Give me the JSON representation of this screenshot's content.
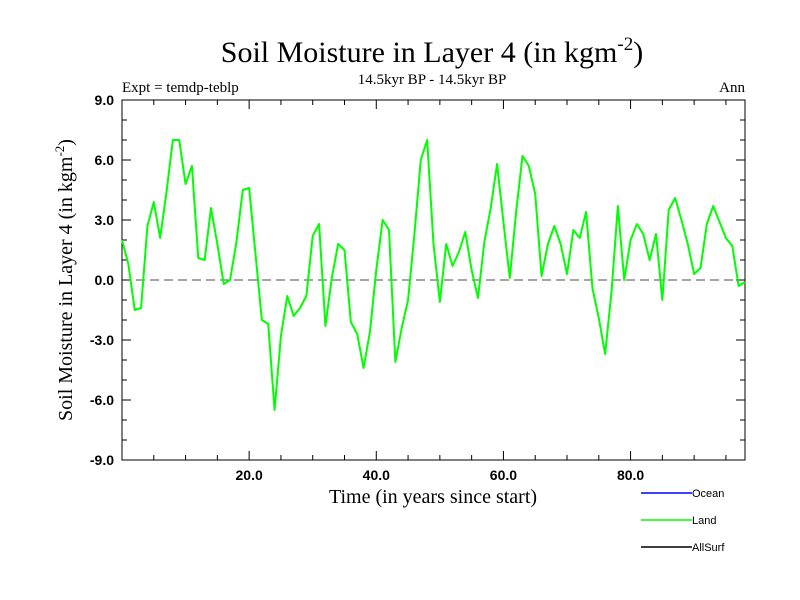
{
  "chart_data": {
    "type": "line",
    "title": "Soil Moisture in Layer 4 (in kgm",
    "title_sup": "-2",
    "title_close": ")",
    "subtitle_left": "Expt = temdp-teblp",
    "subtitle_center": "14.5kyr BP - 14.5kyr BP",
    "subtitle_right": "Ann",
    "xlabel": "Time (in years since start)",
    "ylabel": "Soil Moisture in Layer 4 (in kgm",
    "ylabel_sup": "-2",
    "ylabel_close": ")",
    "xlim": [
      0,
      98
    ],
    "ylim": [
      -9,
      9
    ],
    "x_ticks": [
      20,
      40,
      60,
      80
    ],
    "x_tick_labels": [
      "20.0",
      "40.0",
      "60.0",
      "80.0"
    ],
    "y_ticks": [
      -9,
      -6,
      -3,
      0,
      3,
      6,
      9
    ],
    "y_tick_labels": [
      "-9.0",
      "-6.0",
      "-3.0",
      "0.0",
      "3.0",
      "6.0",
      "9.0"
    ],
    "reference_line": 0,
    "series": [
      {
        "name": "Land",
        "color": "#00ff00",
        "x": [
          0,
          1,
          2,
          3,
          4,
          5,
          6,
          7,
          8,
          9,
          10,
          11,
          12,
          13,
          14,
          15,
          16,
          17,
          18,
          19,
          20,
          21,
          22,
          23,
          24,
          25,
          26,
          27,
          28,
          29,
          30,
          31,
          32,
          33,
          34,
          35,
          36,
          37,
          38,
          39,
          40,
          41,
          42,
          43,
          44,
          45,
          46,
          47,
          48,
          49,
          50,
          51,
          52,
          53,
          54,
          55,
          56,
          57,
          58,
          59,
          60,
          61,
          62,
          63,
          64,
          65,
          66,
          67,
          68,
          69,
          70,
          71,
          72,
          73,
          74,
          75,
          76,
          77,
          78,
          79,
          80,
          81,
          82,
          83,
          84,
          85,
          86,
          87,
          88,
          89,
          90,
          91,
          92,
          93,
          94,
          95,
          96,
          97,
          98
        ],
        "values": [
          2.0,
          0.8,
          -1.5,
          -1.4,
          2.7,
          3.9,
          2.1,
          4.4,
          7.0,
          7.0,
          4.8,
          5.7,
          1.1,
          1.0,
          3.6,
          1.8,
          -0.2,
          0.0,
          1.9,
          4.5,
          4.6,
          1.3,
          -2.0,
          -2.2,
          -6.5,
          -2.8,
          -0.8,
          -1.8,
          -1.4,
          -0.8,
          2.2,
          2.8,
          -2.3,
          0.1,
          1.8,
          1.5,
          -2.1,
          -2.7,
          -4.4,
          -2.6,
          0.5,
          3.0,
          2.5,
          -4.1,
          -2.4,
          -1.0,
          2.3,
          6.0,
          7.0,
          1.8,
          -1.1,
          1.8,
          0.7,
          1.4,
          2.4,
          0.5,
          -0.9,
          1.9,
          3.6,
          5.8,
          2.9,
          0.1,
          3.4,
          6.2,
          5.7,
          4.3,
          0.2,
          1.8,
          2.7,
          1.8,
          0.3,
          2.5,
          2.1,
          3.4,
          -0.4,
          -1.9,
          -3.7,
          -0.6,
          3.7,
          0.0,
          2.0,
          2.8,
          2.3,
          1.0,
          2.3,
          -1.0,
          3.5,
          4.1,
          3.0,
          1.8,
          0.3,
          0.6,
          2.8,
          3.7,
          2.9,
          2.1,
          1.7,
          -0.3,
          -0.1
        ]
      },
      {
        "name": "Ocean",
        "color": "#0000ff",
        "x": [],
        "values": []
      },
      {
        "name": "AllSurf",
        "color": "#000000",
        "x": [],
        "values": []
      }
    ],
    "legend": [
      {
        "name": "Ocean",
        "color": "#0000ff"
      },
      {
        "name": "Land",
        "color": "#00ff00"
      },
      {
        "name": "AllSurf",
        "color": "#000000"
      }
    ],
    "legend_position": "bottom-right"
  }
}
